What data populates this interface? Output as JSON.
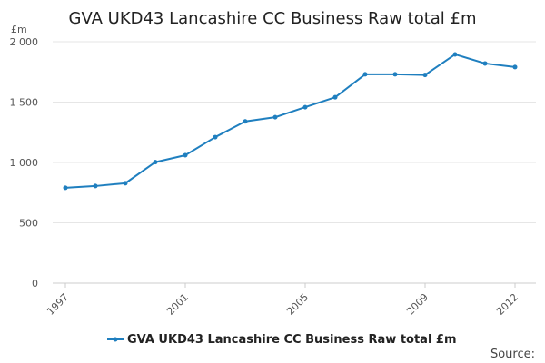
{
  "chart_data": {
    "type": "line",
    "title": "GVA UKD43 Lancashire CC Business Raw total £m",
    "ylabel": "£m",
    "xlabel": "",
    "ylim": [
      0,
      2000
    ],
    "yticks": [
      0,
      500,
      1000,
      1500,
      2000
    ],
    "ytick_labels": [
      "0",
      "500",
      "1 000",
      "1 500",
      "2 000"
    ],
    "xticks": [
      1997,
      2001,
      2005,
      2009,
      2012
    ],
    "xlim": [
      1997,
      2012
    ],
    "grid": true,
    "legend_position": "bottom",
    "series": [
      {
        "name": "GVA UKD43 Lancashire CC Business Raw total £m",
        "color": "#1f7fbf",
        "x": [
          1997,
          1998,
          1999,
          2000,
          2001,
          2002,
          2003,
          2004,
          2005,
          2006,
          2007,
          2008,
          2009,
          2010,
          2011,
          2012
        ],
        "values": [
          790,
          805,
          828,
          1003,
          1060,
          1210,
          1340,
          1375,
          1458,
          1540,
          1730,
          1730,
          1725,
          1895,
          1820,
          1790
        ]
      }
    ],
    "source_label": "Source:"
  }
}
